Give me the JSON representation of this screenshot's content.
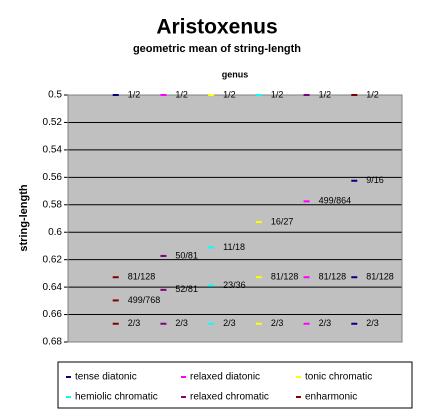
{
  "chart_data": {
    "type": "scatter",
    "title": "Aristoxenus",
    "subtitle": "geometric mean of string-length",
    "x_label": "genus",
    "y_label": "string-length",
    "xlim": [
      0,
      7
    ],
    "ylim": [
      0.5,
      0.68
    ],
    "y_inverted": true,
    "yticks": [
      {
        "value": 0.5,
        "label": "0.5"
      },
      {
        "value": 0.52,
        "label": "0.52"
      },
      {
        "value": 0.54,
        "label": "0.54"
      },
      {
        "value": 0.56,
        "label": "0.56"
      },
      {
        "value": 0.58,
        "label": "0.58"
      },
      {
        "value": 0.6,
        "label": "0.6"
      },
      {
        "value": 0.62,
        "label": "0.62"
      },
      {
        "value": 0.64,
        "label": "0.64"
      },
      {
        "value": 0.66,
        "label": "0.66"
      },
      {
        "value": 0.68,
        "label": "0.68"
      }
    ],
    "grid": true,
    "plot_background": "#c0c0c0",
    "legend_position": "bottom",
    "series": [
      {
        "name": "tense diatonic",
        "color": "#000080",
        "x": [
          1,
          6,
          6,
          6
        ],
        "values": [
          0.5,
          0.5625,
          0.6328,
          0.6667
        ],
        "value_labels": [
          "1/2",
          "9/16",
          "81/128",
          "2/3"
        ]
      },
      {
        "name": "relaxed diatonic",
        "color": "#ff00ff",
        "x": [
          2,
          5,
          5,
          5
        ],
        "values": [
          0.5,
          0.5775,
          0.6328,
          0.6667
        ],
        "value_labels": [
          "1/2",
          "499/864",
          "81/128",
          "2/3"
        ]
      },
      {
        "name": "tonic chromatic",
        "color": "#ffff00",
        "x": [
          3,
          4,
          4,
          4
        ],
        "values": [
          0.5,
          0.5926,
          0.6328,
          0.6667
        ],
        "value_labels": [
          "1/2",
          "16/27",
          "81/128",
          "2/3"
        ]
      },
      {
        "name": "hemiolic chromatic",
        "color": "#00ffff",
        "x": [
          4,
          3,
          3,
          3
        ],
        "values": [
          0.5,
          0.6111,
          0.6389,
          0.6667
        ],
        "value_labels": [
          "1/2",
          "11/18",
          "23/36",
          "2/3"
        ]
      },
      {
        "name": "relaxed chromatic",
        "color": "#800080",
        "x": [
          5,
          2,
          2,
          2
        ],
        "values": [
          0.5,
          0.6173,
          0.642,
          0.6667
        ],
        "value_labels": [
          "1/2",
          "50/81",
          "52/81",
          "2/3"
        ]
      },
      {
        "name": "enharmonic",
        "color": "#800000",
        "x": [
          6,
          1,
          1,
          1
        ],
        "values": [
          0.5,
          0.6497,
          0.6328,
          0.6667
        ],
        "value_labels": [
          "1/2",
          "499/768",
          "81/128",
          "2/3"
        ]
      }
    ]
  }
}
